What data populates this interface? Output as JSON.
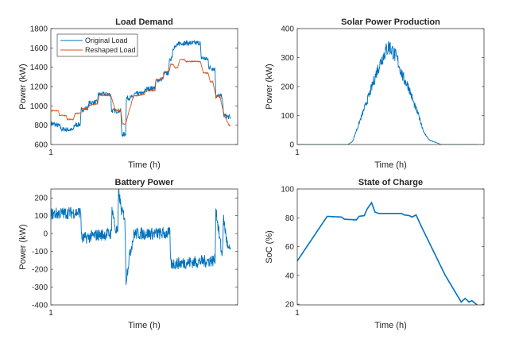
{
  "chart_data": [
    {
      "type": "line",
      "title": "Load Demand",
      "xlabel": "Time (h)",
      "ylabel": "Power (kW)",
      "xlim": [
        1,
        25
      ],
      "ylim": [
        600,
        1800
      ],
      "xticks": [
        1
      ],
      "xtick_labels": [
        "1"
      ],
      "yticks": [
        600,
        800,
        1000,
        1200,
        1400,
        1600,
        1800
      ],
      "ytick_labels": [
        "600",
        "800",
        "1000",
        "1200",
        "1400",
        "1600",
        "1800"
      ],
      "legend": {
        "placement": "top-left",
        "entries": [
          "Original Load",
          "Reshaped Load"
        ]
      },
      "series": [
        {
          "name": "Original Load",
          "color": "#0072BD",
          "noise": 25,
          "points": [
            [
              1,
              820
            ],
            [
              2.2,
              790
            ],
            [
              2.3,
              760
            ],
            [
              3.9,
              750
            ],
            [
              4.0,
              800
            ],
            [
              4.8,
              810
            ],
            [
              4.9,
              960
            ],
            [
              5.8,
              980
            ],
            [
              5.9,
              1030
            ],
            [
              7,
              1040
            ],
            [
              7.1,
              1120
            ],
            [
              8.7,
              1120
            ],
            [
              8.8,
              950
            ],
            [
              10.0,
              950
            ],
            [
              10.1,
              700
            ],
            [
              10.6,
              710
            ],
            [
              10.7,
              1080
            ],
            [
              11.6,
              1090
            ],
            [
              11.7,
              1120
            ],
            [
              13,
              1130
            ],
            [
              13.1,
              1170
            ],
            [
              14.4,
              1190
            ],
            [
              14.5,
              1260
            ],
            [
              15.4,
              1280
            ],
            [
              15.5,
              1330
            ],
            [
              16.1,
              1340
            ],
            [
              16.2,
              1450
            ],
            [
              16.6,
              1520
            ],
            [
              16.7,
              1600
            ],
            [
              17.3,
              1620
            ],
            [
              17.4,
              1650
            ],
            [
              20.2,
              1650
            ],
            [
              20.3,
              1500
            ],
            [
              21.2,
              1480
            ],
            [
              21.3,
              1400
            ],
            [
              22.1,
              1380
            ],
            [
              22.2,
              1100
            ],
            [
              23.0,
              1100
            ],
            [
              23.2,
              900
            ],
            [
              24.1,
              880
            ]
          ]
        },
        {
          "name": "Reshaped Load",
          "color": "#D95319",
          "noise": 5,
          "points": [
            [
              1,
              950
            ],
            [
              2,
              950
            ],
            [
              2.1,
              900
            ],
            [
              3,
              900
            ],
            [
              3.1,
              860
            ],
            [
              3.9,
              860
            ],
            [
              4.1,
              920
            ],
            [
              4.8,
              925
            ],
            [
              5.0,
              970
            ],
            [
              5.8,
              980
            ],
            [
              6,
              1010
            ],
            [
              7,
              1020
            ],
            [
              7.2,
              1110
            ],
            [
              8.7,
              1110
            ],
            [
              9.3,
              950
            ],
            [
              10,
              950
            ],
            [
              10.2,
              810
            ],
            [
              10.6,
              815
            ],
            [
              11.6,
              1100
            ],
            [
              13,
              1120
            ],
            [
              13.1,
              1150
            ],
            [
              14.4,
              1160
            ],
            [
              14.5,
              1270
            ],
            [
              15.4,
              1280
            ],
            [
              15.6,
              1350
            ],
            [
              16.2,
              1360
            ],
            [
              16.4,
              1430
            ],
            [
              16.7,
              1430
            ],
            [
              17,
              1390
            ],
            [
              17.3,
              1400
            ],
            [
              17.6,
              1480
            ],
            [
              18.2,
              1480
            ],
            [
              18.3,
              1460
            ],
            [
              20.2,
              1460
            ],
            [
              20.6,
              1340
            ],
            [
              21.2,
              1340
            ],
            [
              21.5,
              1250
            ],
            [
              21.8,
              1250
            ],
            [
              22.2,
              1100
            ],
            [
              22.7,
              1100
            ],
            [
              23.3,
              900
            ],
            [
              23.9,
              800
            ],
            [
              24.1,
              790
            ]
          ]
        }
      ]
    },
    {
      "type": "line",
      "title": "Solar Power Production",
      "xlabel": "Time (h)",
      "ylabel": "Power (kW)",
      "xlim": [
        1,
        25
      ],
      "ylim": [
        0,
        400
      ],
      "xticks": [
        1
      ],
      "xtick_labels": [
        "1"
      ],
      "yticks": [
        0,
        100,
        200,
        300,
        400
      ],
      "ytick_labels": [
        "0",
        "100",
        "200",
        "300",
        "400"
      ],
      "series": [
        {
          "name": "Solar",
          "color": "#0072BD",
          "noise": 30,
          "noise_scaled": true,
          "floor": 0,
          "points": [
            [
              1,
              0
            ],
            [
              7.5,
              0
            ],
            [
              8.1,
              10
            ],
            [
              9.3,
              100
            ],
            [
              10.5,
              190
            ],
            [
              11.2,
              250
            ],
            [
              11.8,
              290
            ],
            [
              12.3,
              320
            ],
            [
              12.8,
              340
            ],
            [
              13.3,
              320
            ],
            [
              13.9,
              290
            ],
            [
              14.6,
              230
            ],
            [
              15.3,
              200
            ],
            [
              16,
              140
            ],
            [
              16.6,
              100
            ],
            [
              17.3,
              40
            ],
            [
              18,
              15
            ],
            [
              19.5,
              0
            ],
            [
              24.1,
              0
            ]
          ]
        }
      ]
    },
    {
      "type": "line",
      "title": "Battery Power",
      "xlabel": "Time (h)",
      "ylabel": "Power (kW)",
      "xlim": [
        1,
        25
      ],
      "ylim": [
        -400,
        250
      ],
      "xticks": [
        1
      ],
      "xtick_labels": [
        "1"
      ],
      "yticks": [
        -400,
        -300,
        -200,
        -100,
        0,
        100,
        200
      ],
      "ytick_labels": [
        "-400",
        "-300",
        "-200",
        "-100",
        "0",
        "100",
        "200"
      ],
      "series": [
        {
          "name": "Battery",
          "color": "#0072BD",
          "noise": 35,
          "points": [
            [
              1,
              110
            ],
            [
              4.85,
              120
            ],
            [
              4.95,
              -30
            ],
            [
              6.7,
              -10
            ],
            [
              8.8,
              0
            ],
            [
              8.85,
              150
            ],
            [
              9.3,
              20
            ],
            [
              9.6,
              10
            ],
            [
              9.7,
              240
            ],
            [
              10.1,
              120
            ],
            [
              10.5,
              100
            ],
            [
              10.65,
              -260
            ],
            [
              11.2,
              -100
            ],
            [
              11.7,
              0
            ],
            [
              16.3,
              0
            ],
            [
              16.4,
              -170
            ],
            [
              22.1,
              -150
            ],
            [
              22.2,
              140
            ],
            [
              23.0,
              -130
            ],
            [
              23.2,
              80
            ],
            [
              23.8,
              -100
            ],
            [
              24.1,
              -80
            ]
          ]
        }
      ]
    },
    {
      "type": "line",
      "title": "State of Charge",
      "xlabel": "Time (h)",
      "ylabel": "SoC (%)",
      "xlim": [
        1,
        25
      ],
      "ylim": [
        19.5,
        100
      ],
      "xticks": [
        1
      ],
      "xtick_labels": [
        "1"
      ],
      "yticks": [
        20,
        40,
        60,
        80,
        100
      ],
      "ytick_labels": [
        "20",
        "40",
        "60",
        "80",
        "100"
      ],
      "series": [
        {
          "name": "SoC",
          "color": "#0072BD",
          "noise": 0,
          "points": [
            [
              1,
              50
            ],
            [
              4.85,
              81
            ],
            [
              6.7,
              80.5
            ],
            [
              7.07,
              79
            ],
            [
              8.6,
              78.5
            ],
            [
              8.94,
              81
            ],
            [
              9.62,
              81.5
            ],
            [
              9.97,
              86
            ],
            [
              10.55,
              90.5
            ],
            [
              10.99,
              84
            ],
            [
              11.5,
              83
            ],
            [
              14.4,
              83
            ],
            [
              14.74,
              82
            ],
            [
              15.42,
              81.5
            ],
            [
              15.76,
              80.5
            ],
            [
              16.27,
              82
            ],
            [
              16.95,
              74
            ],
            [
              20.02,
              40
            ],
            [
              20.36,
              37
            ],
            [
              22.07,
              21.5
            ],
            [
              22.58,
              24
            ],
            [
              23.09,
              21.5
            ],
            [
              23.43,
              22.5
            ],
            [
              24.11,
              19.5
            ]
          ]
        }
      ]
    }
  ]
}
